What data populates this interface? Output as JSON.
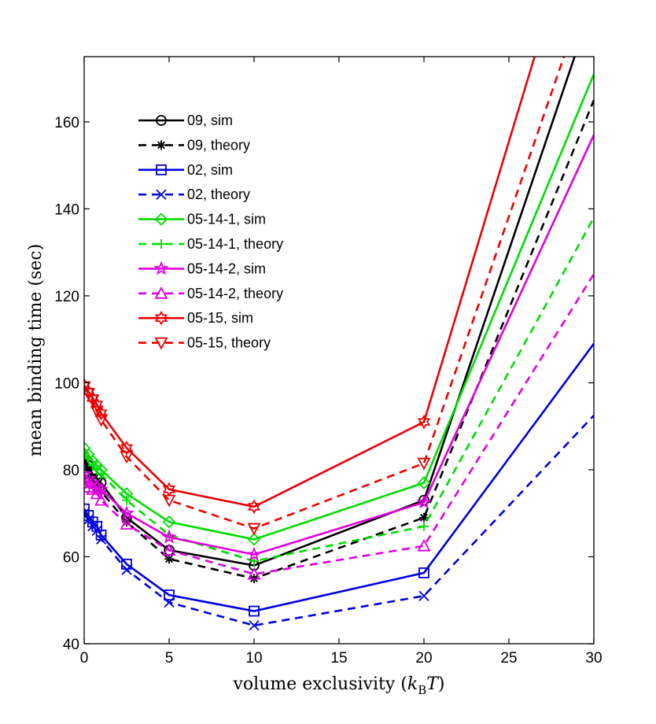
{
  "chart_data": {
    "type": "line",
    "xlabel": "volume exclusivity (k_B T)",
    "xlabel_parts": {
      "main": "volume exclusivity (",
      "k": "k",
      "sub": "B",
      "T": "T",
      "close": ")"
    },
    "ylabel": "mean binding time (sec)",
    "xlim": [
      0,
      30
    ],
    "ylim": [
      40,
      175
    ],
    "xticks": [
      0,
      5,
      10,
      15,
      20,
      25,
      30
    ],
    "yticks": [
      40,
      60,
      80,
      100,
      120,
      140,
      160
    ],
    "grid": false,
    "legend_position": "top-left",
    "x": [
      0,
      0.25,
      0.5,
      0.75,
      1,
      2.5,
      5,
      10,
      20,
      30
    ],
    "series": [
      {
        "name": "09, sim",
        "color": "#000000",
        "dash": "solid",
        "marker": "circle",
        "values": [
          83,
          81,
          79,
          78,
          77,
          69,
          61.5,
          58,
          73,
          188
        ]
      },
      {
        "name": "09, theory",
        "color": "#000000",
        "dash": "dashed",
        "marker": "asterisk",
        "values": [
          82,
          80,
          78,
          76,
          75,
          68,
          59.5,
          55,
          69,
          165
        ]
      },
      {
        "name": "02, sim",
        "color": "#0000e0",
        "dash": "solid",
        "marker": "square",
        "values": [
          71,
          69.5,
          68,
          67,
          65,
          58.3,
          51.2,
          47.5,
          56.3,
          109
        ]
      },
      {
        "name": "02, theory",
        "color": "#0000e0",
        "dash": "dashed",
        "marker": "x",
        "values": [
          70,
          68.5,
          67,
          66,
          64,
          57,
          49.5,
          44.2,
          51,
          92.5
        ]
      },
      {
        "name": "05-14-1, sim",
        "color": "#00dd00",
        "dash": "solid",
        "marker": "diamond",
        "values": [
          85,
          83.5,
          82,
          81,
          80,
          74.5,
          68,
          64,
          77,
          171
        ]
      },
      {
        "name": "05-14-1, theory",
        "color": "#00dd00",
        "dash": "dashed",
        "marker": "plus",
        "values": [
          84,
          82.5,
          81,
          80,
          79,
          73,
          65,
          59,
          67,
          138
        ]
      },
      {
        "name": "05-14-2, sim",
        "color": "#e000e0",
        "dash": "solid",
        "marker": "star5",
        "values": [
          79,
          78,
          77,
          76,
          75.5,
          70,
          64.5,
          60.5,
          72.5,
          157
        ]
      },
      {
        "name": "05-14-2, theory",
        "color": "#e000e0",
        "dash": "dashed",
        "marker": "triangle-up",
        "values": [
          77,
          76,
          75.5,
          74.5,
          73,
          67.5,
          61.5,
          56,
          62.5,
          125
        ]
      },
      {
        "name": "05-15, sim",
        "color": "#ee0000",
        "dash": "solid",
        "marker": "hexagram",
        "values": [
          99.5,
          98,
          96.5,
          95,
          93,
          85,
          75.5,
          71.5,
          91,
          220
        ]
      },
      {
        "name": "05-15, theory",
        "color": "#ee0000",
        "dash": "dashed",
        "marker": "triangle-down",
        "values": [
          99,
          97.5,
          96,
          93.5,
          91.5,
          83,
          73,
          66.5,
          81.5,
          195
        ]
      }
    ]
  }
}
